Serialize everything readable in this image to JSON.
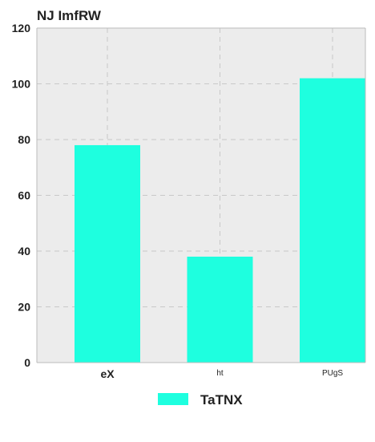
{
  "chart_data": {
    "type": "bar",
    "title": "NJ ImfRW",
    "categories": [
      "eX",
      "ht",
      "PUgS"
    ],
    "series": [
      {
        "name": "TaTNX",
        "values": [
          78,
          38,
          102
        ],
        "color": "#1effdf"
      }
    ],
    "ylim": [
      0,
      120
    ],
    "yticks": [
      0,
      20,
      40,
      60,
      80,
      100,
      120
    ],
    "grid": true,
    "legend_position": "bottom-center",
    "colors": {
      "plot_background": "#ececec",
      "grid": "#c8c8c8",
      "axis": "#bbbbbb",
      "text": "#222222"
    }
  }
}
